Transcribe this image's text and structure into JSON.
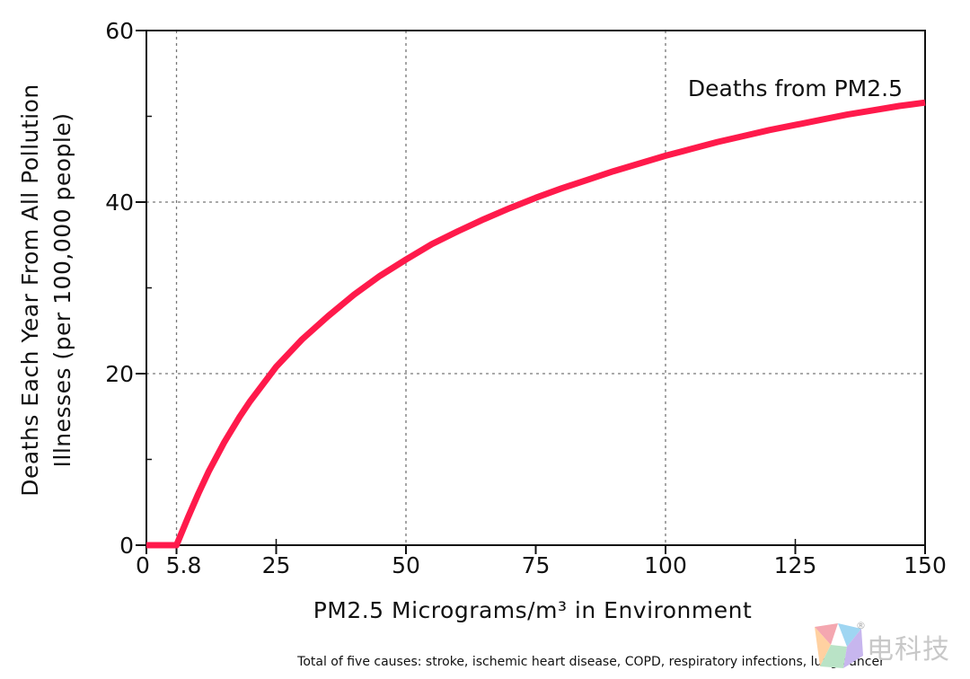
{
  "chart_data": {
    "type": "line",
    "xlabel": "PM2.5 Micrograms/m³ in Environment",
    "ylabel_line1": "Deaths Each Year From All Pollution",
    "ylabel_line2": "Illnesses (per 100,000 people)",
    "xlim": [
      0,
      150
    ],
    "ylim": [
      0,
      60
    ],
    "x_ticks": [
      {
        "value": 0,
        "label": "0"
      },
      {
        "value": 5.8,
        "label": "5.8"
      },
      {
        "value": 25,
        "label": "25"
      },
      {
        "value": 50,
        "label": "50"
      },
      {
        "value": 75,
        "label": "75"
      },
      {
        "value": 100,
        "label": "100"
      },
      {
        "value": 125,
        "label": "125"
      },
      {
        "value": 150,
        "label": "150"
      }
    ],
    "x_minor_ticks": [
      25,
      125
    ],
    "x_gridlines": [
      5.8,
      50,
      100
    ],
    "y_ticks": [
      {
        "value": 0,
        "label": "0"
      },
      {
        "value": 20,
        "label": "20"
      },
      {
        "value": 40,
        "label": "40"
      },
      {
        "value": 60,
        "label": "60"
      }
    ],
    "y_minor_ticks": [
      10,
      30,
      50
    ],
    "y_gridlines": [
      20,
      40
    ],
    "series": [
      {
        "name": "Deaths from PM2.5",
        "color": "#ff1a4b",
        "x": [
          0,
          5.8,
          8,
          10,
          12,
          15,
          18,
          20,
          25,
          30,
          35,
          40,
          45,
          50,
          55,
          60,
          65,
          70,
          75,
          80,
          85,
          90,
          95,
          100,
          105,
          110,
          115,
          120,
          125,
          130,
          135,
          140,
          145,
          150
        ],
        "y": [
          0,
          0,
          3.2,
          6.0,
          8.6,
          12.0,
          15.0,
          16.8,
          20.8,
          24.0,
          26.7,
          29.2,
          31.4,
          33.3,
          35.1,
          36.6,
          38.0,
          39.3,
          40.5,
          41.6,
          42.6,
          43.6,
          44.5,
          45.4,
          46.2,
          47.0,
          47.7,
          48.4,
          49.0,
          49.6,
          50.2,
          50.7,
          51.2,
          51.6
        ]
      }
    ],
    "footnote": "Total of five causes: stroke, ischemic heart disease, COPD, respiratory infections, lung cancer"
  },
  "watermark": {
    "text": "电科技",
    "registered_mark": "®"
  }
}
